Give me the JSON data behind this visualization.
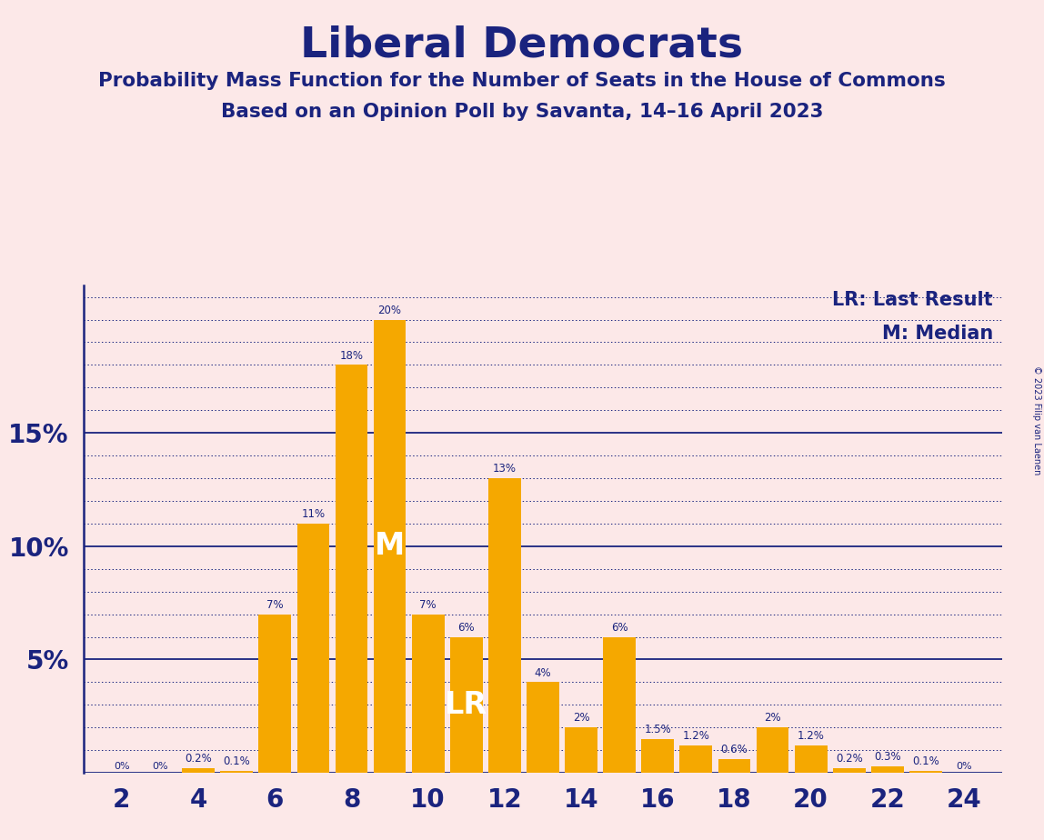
{
  "title": "Liberal Democrats",
  "subtitle1": "Probability Mass Function for the Number of Seats in the House of Commons",
  "subtitle2": "Based on an Opinion Poll by Savanta, 14–16 April 2023",
  "copyright": "© 2023 Filip van Laenen",
  "background_color": "#fce8e8",
  "bar_color_hex": "#F5A800",
  "text_color_dark": "#1a237e",
  "seats": [
    2,
    3,
    4,
    5,
    6,
    7,
    8,
    9,
    10,
    11,
    12,
    13,
    14,
    15,
    16,
    17,
    18,
    19,
    20,
    21,
    22,
    23,
    24
  ],
  "values": [
    0.0,
    0.0,
    0.2,
    0.1,
    7.0,
    11.0,
    18.0,
    20.0,
    7.0,
    6.0,
    13.0,
    4.0,
    2.0,
    6.0,
    1.5,
    1.2,
    0.6,
    2.0,
    1.2,
    0.2,
    0.3,
    0.1,
    0.0
  ],
  "labels": [
    "0%",
    "0%",
    "0.2%",
    "0.1%",
    "7%",
    "11%",
    "18%",
    "20%",
    "7%",
    "6%",
    "13%",
    "4%",
    "2%",
    "6%",
    "1.5%",
    "1.2%",
    "0.6%",
    "2%",
    "1.2%",
    "0.2%",
    "0.3%",
    "0.1%",
    "0%"
  ],
  "median_seat": 9,
  "lr_seat": 11,
  "yticks": [
    5,
    10,
    15
  ],
  "ylim": [
    0,
    21.5
  ],
  "xlim": [
    1.0,
    25.0
  ],
  "xlabel_seats": [
    2,
    4,
    6,
    8,
    10,
    12,
    14,
    16,
    18,
    20,
    22,
    24
  ],
  "legend_lr": "LR: Last Result",
  "legend_m": "M: Median",
  "dotted_gridline_step": 1,
  "solid_gridline_values": [
    0,
    5,
    10,
    15
  ],
  "dotted_gridline_values": [
    1,
    2,
    3,
    4,
    6,
    7,
    8,
    9,
    11,
    12,
    13,
    14,
    16,
    17,
    18,
    19,
    20,
    21
  ]
}
